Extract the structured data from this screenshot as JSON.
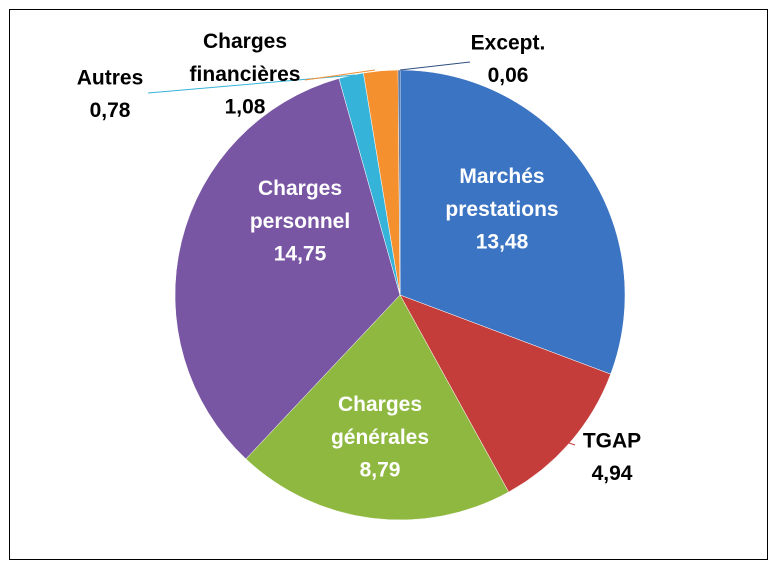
{
  "chart_data": {
    "type": "pie",
    "categories": [
      "Marchés prestations",
      "TGAP",
      "Charges générales",
      "Charges personnel",
      "Autres",
      "Charges financières",
      "Except."
    ],
    "values": [
      13.48,
      4.94,
      8.79,
      14.75,
      0.78,
      1.08,
      0.06
    ],
    "value_labels": [
      "13,48",
      "4,94",
      "8,79",
      "14,75",
      "0,78",
      "1,08",
      "0,06"
    ],
    "colors": [
      "#3b74c2",
      "#c43d3a",
      "#8fb840",
      "#7856a3",
      "#36b3d8",
      "#f5902f",
      "#2f4f80"
    ]
  }
}
